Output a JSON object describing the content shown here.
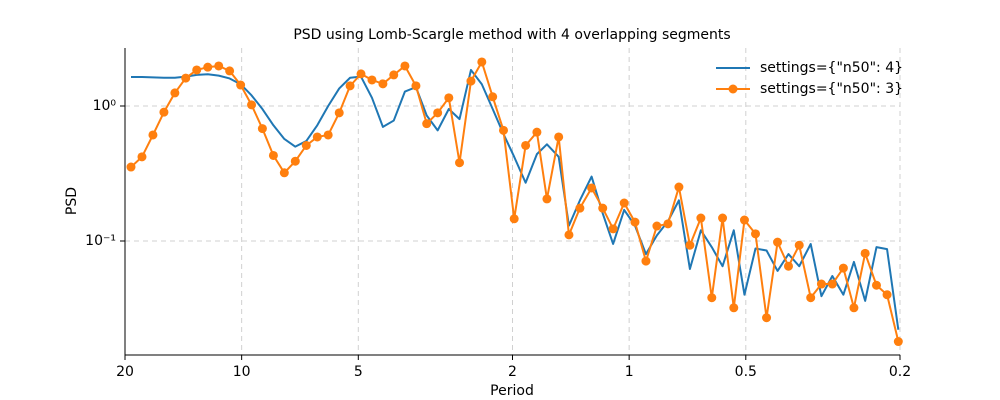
{
  "chart_data": {
    "type": "line",
    "title": "PSD using Lomb-Scargle method with 4 overlapping segments",
    "xlabel": "Period",
    "ylabel": "PSD",
    "xscale": "log",
    "yscale": "log",
    "grid": true,
    "legend": "upper right",
    "xlim": [
      20,
      0.2
    ],
    "ylim": [
      0.0143,
      2.69
    ],
    "xticks": [
      20,
      10,
      5,
      2,
      1,
      0.5,
      0.2
    ],
    "yticks": [
      {
        "value": 0.1,
        "label": "10⁻¹"
      },
      {
        "value": 1,
        "label": "10⁰"
      }
    ],
    "x": [
      19.3,
      18.08,
      16.94,
      15.87,
      14.87,
      13.94,
      13.06,
      12.23,
      11.46,
      10.74,
      10.06,
      9.43,
      8.84,
      8.28,
      7.76,
      7.27,
      6.81,
      6.38,
      5.98,
      5.6,
      5.25,
      4.92,
      4.61,
      4.32,
      4.05,
      3.79,
      3.55,
      3.33,
      3.12,
      2.92,
      2.74,
      2.56,
      2.4,
      2.25,
      2.11,
      1.98,
      1.85,
      1.73,
      1.63,
      1.52,
      1.43,
      1.34,
      1.25,
      1.17,
      1.1,
      1.03,
      0.966,
      0.905,
      0.848,
      0.794,
      0.744,
      0.697,
      0.653,
      0.612,
      0.574,
      0.537,
      0.504,
      0.472,
      0.442,
      0.414,
      0.388,
      0.364,
      0.34,
      0.319,
      0.299,
      0.28,
      0.263,
      0.246,
      0.23,
      0.216,
      0.202
    ],
    "series": [
      {
        "name": "settings={\"n50\": 4}",
        "color": "#1f77b4",
        "marker": null,
        "values": [
          1.64,
          1.64,
          1.63,
          1.62,
          1.62,
          1.65,
          1.7,
          1.72,
          1.68,
          1.6,
          1.45,
          1.2,
          0.95,
          0.72,
          0.57,
          0.5,
          0.55,
          0.72,
          1.0,
          1.35,
          1.62,
          1.65,
          1.15,
          0.7,
          0.78,
          1.28,
          1.38,
          0.85,
          0.66,
          0.95,
          0.8,
          1.85,
          1.45,
          0.95,
          0.62,
          0.42,
          0.27,
          0.44,
          0.52,
          0.42,
          0.13,
          0.2,
          0.3,
          0.16,
          0.095,
          0.17,
          0.13,
          0.08,
          0.11,
          0.14,
          0.2,
          0.062,
          0.12,
          0.09,
          0.065,
          0.12,
          0.04,
          0.088,
          0.085,
          0.06,
          0.08,
          0.065,
          0.095,
          0.039,
          0.055,
          0.04,
          0.07,
          0.036,
          0.09,
          0.087,
          0.022
        ]
      },
      {
        "name": "settings={\"n50\": 3}",
        "color": "#ff7f0e",
        "marker": "circle",
        "values": [
          0.353,
          0.42,
          0.61,
          0.9,
          1.25,
          1.61,
          1.85,
          1.94,
          1.98,
          1.82,
          1.43,
          1.02,
          0.68,
          0.43,
          0.32,
          0.39,
          0.51,
          0.59,
          0.61,
          0.89,
          1.41,
          1.73,
          1.56,
          1.46,
          1.7,
          1.98,
          1.41,
          0.74,
          0.89,
          1.15,
          0.38,
          1.53,
          2.12,
          1.17,
          0.66,
          0.146,
          0.51,
          0.64,
          0.205,
          0.59,
          0.111,
          0.175,
          0.247,
          0.175,
          0.123,
          0.191,
          0.138,
          0.071,
          0.129,
          0.134,
          0.251,
          0.093,
          0.148,
          0.038,
          0.148,
          0.032,
          0.143,
          0.113,
          0.027,
          0.098,
          0.065,
          0.093,
          0.038,
          0.048,
          0.048,
          0.063,
          0.032,
          0.081,
          0.047,
          0.04,
          0.018
        ]
      }
    ]
  }
}
